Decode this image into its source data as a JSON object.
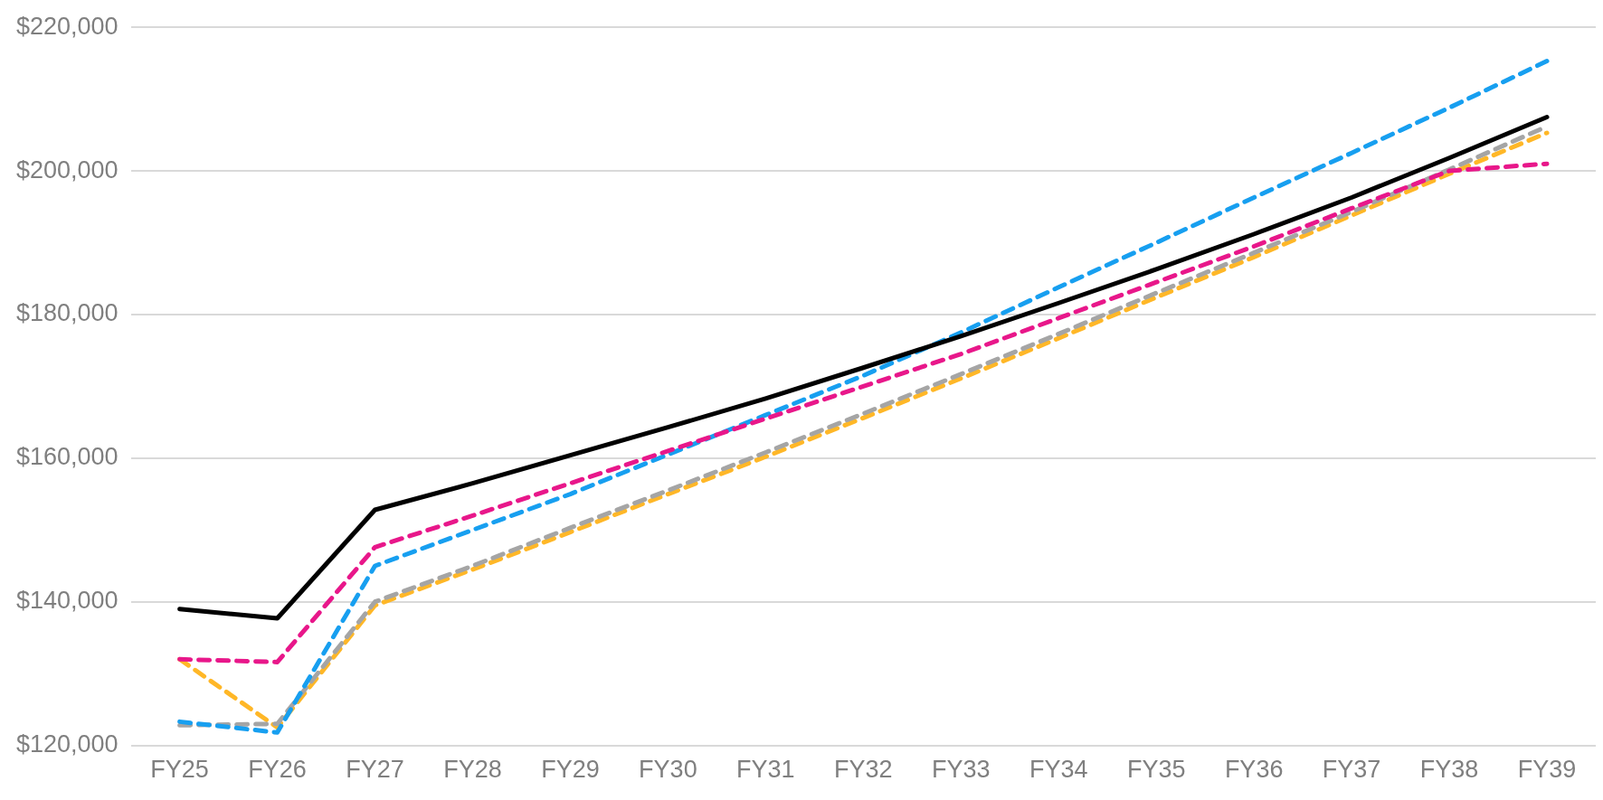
{
  "chart_data": {
    "type": "line",
    "categories": [
      "FY25",
      "FY26",
      "FY27",
      "FY28",
      "FY29",
      "FY30",
      "FY31",
      "FY32",
      "FY33",
      "FY34",
      "FY35",
      "FY36",
      "FY37",
      "FY38",
      "FY39"
    ],
    "series": [
      {
        "color": "#000000",
        "line_style": "solid",
        "values": [
          139000,
          137700,
          152800,
          156500,
          160400,
          164300,
          168300,
          172600,
          177000,
          181600,
          186300,
          191200,
          196300,
          201800,
          207500
        ]
      },
      {
        "color": "#e8178a",
        "line_style": "dashed",
        "values": [
          132000,
          131600,
          147600,
          152000,
          156500,
          161000,
          165500,
          170000,
          174500,
          179500,
          184500,
          189500,
          194800,
          200000,
          201000
        ]
      },
      {
        "color": "#179ff0",
        "line_style": "dashed",
        "values": [
          123300,
          121800,
          145000,
          150000,
          155000,
          160500,
          166000,
          171500,
          177500,
          183800,
          190000,
          196300,
          202500,
          208800,
          215300
        ]
      },
      {
        "color": "#a5a5a5",
        "line_style": "dashed",
        "values": [
          122800,
          123000,
          140000,
          145000,
          150300,
          155500,
          160800,
          166200,
          171700,
          177300,
          183000,
          188600,
          194300,
          200200,
          206200
        ]
      },
      {
        "color": "#ffb727",
        "line_style": "dashed",
        "values": [
          132000,
          122500,
          139500,
          144500,
          149700,
          155000,
          160200,
          165600,
          171100,
          176700,
          182400,
          188000,
          193800,
          199600,
          205300
        ]
      }
    ],
    "ylim": [
      120000,
      220000
    ],
    "yticks": [
      {
        "value": 120000,
        "label": "$120,000"
      },
      {
        "value": 140000,
        "label": "$140,000"
      },
      {
        "value": 160000,
        "label": "$160,000"
      },
      {
        "value": 180000,
        "label": "$180,000"
      },
      {
        "value": 200000,
        "label": "$200,000"
      },
      {
        "value": 220000,
        "label": "$220,000"
      }
    ],
    "grid": "y",
    "legend": false,
    "marker": "none"
  }
}
